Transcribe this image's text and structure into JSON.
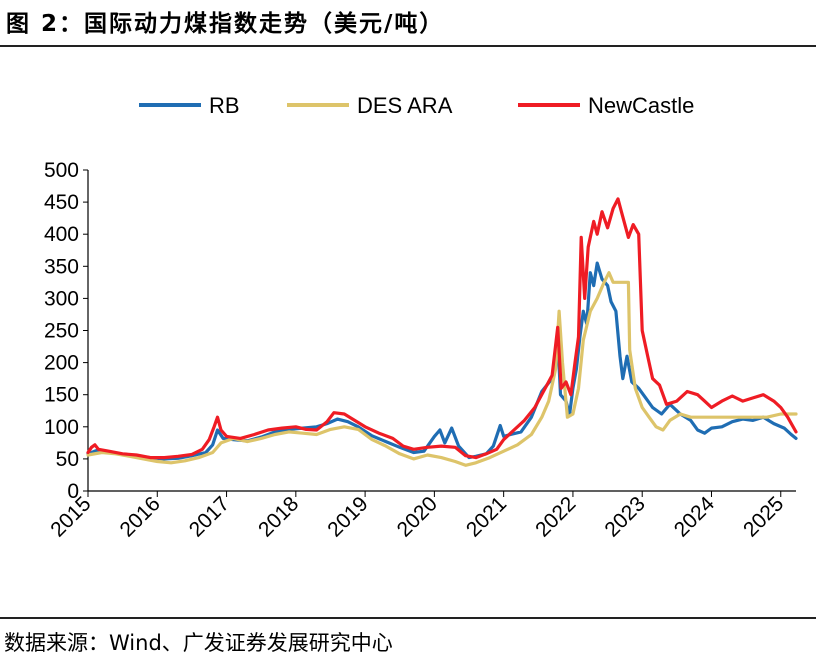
{
  "figure": {
    "title": "图  2：国际动力煤指数走势（美元/吨）",
    "source": "数据来源：Wind、广发证券发展研究中心"
  },
  "chart_data": {
    "type": "line",
    "title": "国际动力煤指数走势（美元/吨）",
    "xlabel": "",
    "ylabel": "",
    "ylim": [
      0,
      500
    ],
    "yticks": [
      0,
      50,
      100,
      150,
      200,
      250,
      300,
      350,
      400,
      450,
      500
    ],
    "xlim": [
      2015.0,
      2025.22
    ],
    "xticks": [
      "2015",
      "2016",
      "2017",
      "2018",
      "2019",
      "2020",
      "2021",
      "2022",
      "2023",
      "2024",
      "2025"
    ],
    "legend_position": "top",
    "series": [
      {
        "name": "RB",
        "color": "#1f6db3",
        "points": [
          [
            2015.0,
            58
          ],
          [
            2015.15,
            64
          ],
          [
            2015.3,
            60
          ],
          [
            2015.5,
            57
          ],
          [
            2015.7,
            54
          ],
          [
            2015.9,
            52
          ],
          [
            2016.1,
            50
          ],
          [
            2016.3,
            51
          ],
          [
            2016.5,
            55
          ],
          [
            2016.7,
            60
          ],
          [
            2016.8,
            72
          ],
          [
            2016.87,
            95
          ],
          [
            2016.95,
            82
          ],
          [
            2017.1,
            80
          ],
          [
            2017.3,
            78
          ],
          [
            2017.5,
            84
          ],
          [
            2017.7,
            92
          ],
          [
            2017.9,
            96
          ],
          [
            2018.1,
            98
          ],
          [
            2018.3,
            100
          ],
          [
            2018.45,
            105
          ],
          [
            2018.6,
            112
          ],
          [
            2018.75,
            108
          ],
          [
            2018.9,
            100
          ],
          [
            2019.1,
            86
          ],
          [
            2019.3,
            77
          ],
          [
            2019.5,
            68
          ],
          [
            2019.7,
            60
          ],
          [
            2019.85,
            62
          ],
          [
            2020.0,
            85
          ],
          [
            2020.08,
            95
          ],
          [
            2020.15,
            75
          ],
          [
            2020.25,
            98
          ],
          [
            2020.35,
            70
          ],
          [
            2020.5,
            52
          ],
          [
            2020.6,
            54
          ],
          [
            2020.75,
            58
          ],
          [
            2020.85,
            70
          ],
          [
            2020.95,
            102
          ],
          [
            2021.0,
            85
          ],
          [
            2021.1,
            88
          ],
          [
            2021.25,
            92
          ],
          [
            2021.4,
            115
          ],
          [
            2021.55,
            155
          ],
          [
            2021.7,
            175
          ],
          [
            2021.78,
            240
          ],
          [
            2021.82,
            150
          ],
          [
            2021.9,
            140
          ],
          [
            2021.95,
            118
          ],
          [
            2022.0,
            160
          ],
          [
            2022.05,
            190
          ],
          [
            2022.1,
            240
          ],
          [
            2022.15,
            280
          ],
          [
            2022.2,
            260
          ],
          [
            2022.25,
            340
          ],
          [
            2022.3,
            320
          ],
          [
            2022.35,
            355
          ],
          [
            2022.42,
            330
          ],
          [
            2022.5,
            320
          ],
          [
            2022.55,
            295
          ],
          [
            2022.62,
            280
          ],
          [
            2022.68,
            210
          ],
          [
            2022.72,
            175
          ],
          [
            2022.78,
            210
          ],
          [
            2022.85,
            170
          ],
          [
            2022.95,
            160
          ],
          [
            2023.05,
            145
          ],
          [
            2023.15,
            130
          ],
          [
            2023.28,
            120
          ],
          [
            2023.4,
            135
          ],
          [
            2023.55,
            120
          ],
          [
            2023.7,
            110
          ],
          [
            2023.8,
            95
          ],
          [
            2023.9,
            90
          ],
          [
            2024.0,
            98
          ],
          [
            2024.15,
            100
          ],
          [
            2024.3,
            108
          ],
          [
            2024.45,
            112
          ],
          [
            2024.6,
            110
          ],
          [
            2024.75,
            115
          ],
          [
            2024.9,
            105
          ],
          [
            2025.05,
            98
          ],
          [
            2025.15,
            88
          ],
          [
            2025.22,
            82
          ]
        ]
      },
      {
        "name": "DES ARA",
        "color": "#ddc46a",
        "points": [
          [
            2015.0,
            56
          ],
          [
            2015.2,
            60
          ],
          [
            2015.4,
            58
          ],
          [
            2015.6,
            54
          ],
          [
            2015.8,
            50
          ],
          [
            2016.0,
            46
          ],
          [
            2016.2,
            44
          ],
          [
            2016.4,
            47
          ],
          [
            2016.6,
            52
          ],
          [
            2016.8,
            60
          ],
          [
            2016.92,
            75
          ],
          [
            2017.1,
            82
          ],
          [
            2017.3,
            77
          ],
          [
            2017.5,
            82
          ],
          [
            2017.7,
            88
          ],
          [
            2017.9,
            92
          ],
          [
            2018.1,
            90
          ],
          [
            2018.3,
            88
          ],
          [
            2018.5,
            96
          ],
          [
            2018.7,
            100
          ],
          [
            2018.9,
            96
          ],
          [
            2019.1,
            80
          ],
          [
            2019.3,
            70
          ],
          [
            2019.5,
            58
          ],
          [
            2019.7,
            50
          ],
          [
            2019.9,
            56
          ],
          [
            2020.1,
            52
          ],
          [
            2020.3,
            46
          ],
          [
            2020.45,
            40
          ],
          [
            2020.6,
            44
          ],
          [
            2020.8,
            52
          ],
          [
            2021.0,
            62
          ],
          [
            2021.2,
            72
          ],
          [
            2021.4,
            88
          ],
          [
            2021.55,
            115
          ],
          [
            2021.65,
            140
          ],
          [
            2021.75,
            190
          ],
          [
            2021.8,
            280
          ],
          [
            2021.85,
            200
          ],
          [
            2021.92,
            115
          ],
          [
            2022.0,
            120
          ],
          [
            2022.08,
            160
          ],
          [
            2022.15,
            235
          ],
          [
            2022.25,
            280
          ],
          [
            2022.35,
            300
          ],
          [
            2022.45,
            325
          ],
          [
            2022.52,
            340
          ],
          [
            2022.58,
            325
          ],
          [
            2022.8,
            325
          ],
          [
            2022.82,
            220
          ],
          [
            2022.9,
            160
          ],
          [
            2023.0,
            130
          ],
          [
            2023.1,
            115
          ],
          [
            2023.2,
            100
          ],
          [
            2023.3,
            95
          ],
          [
            2023.4,
            110
          ],
          [
            2023.55,
            120
          ],
          [
            2023.7,
            115
          ],
          [
            2024.0,
            115
          ],
          [
            2024.5,
            115
          ],
          [
            2024.6,
            115
          ],
          [
            2024.8,
            115
          ],
          [
            2025.0,
            120
          ],
          [
            2025.22,
            120
          ]
        ]
      },
      {
        "name": "NewCastle",
        "color": "#ef1c24",
        "points": [
          [
            2015.0,
            60
          ],
          [
            2015.05,
            68
          ],
          [
            2015.1,
            72
          ],
          [
            2015.15,
            65
          ],
          [
            2015.3,
            62
          ],
          [
            2015.5,
            58
          ],
          [
            2015.7,
            56
          ],
          [
            2015.9,
            52
          ],
          [
            2016.1,
            52
          ],
          [
            2016.3,
            54
          ],
          [
            2016.5,
            57
          ],
          [
            2016.65,
            65
          ],
          [
            2016.75,
            80
          ],
          [
            2016.82,
            100
          ],
          [
            2016.87,
            115
          ],
          [
            2016.92,
            95
          ],
          [
            2017.0,
            85
          ],
          [
            2017.2,
            82
          ],
          [
            2017.4,
            88
          ],
          [
            2017.6,
            95
          ],
          [
            2017.8,
            98
          ],
          [
            2018.0,
            100
          ],
          [
            2018.15,
            96
          ],
          [
            2018.3,
            95
          ],
          [
            2018.45,
            108
          ],
          [
            2018.55,
            122
          ],
          [
            2018.7,
            120
          ],
          [
            2018.85,
            110
          ],
          [
            2019.0,
            100
          ],
          [
            2019.2,
            90
          ],
          [
            2019.4,
            82
          ],
          [
            2019.55,
            70
          ],
          [
            2019.7,
            65
          ],
          [
            2019.9,
            68
          ],
          [
            2020.1,
            70
          ],
          [
            2020.3,
            68
          ],
          [
            2020.45,
            55
          ],
          [
            2020.6,
            52
          ],
          [
            2020.75,
            58
          ],
          [
            2020.9,
            65
          ],
          [
            2021.0,
            80
          ],
          [
            2021.15,
            95
          ],
          [
            2021.3,
            110
          ],
          [
            2021.45,
            130
          ],
          [
            2021.6,
            160
          ],
          [
            2021.7,
            180
          ],
          [
            2021.78,
            255
          ],
          [
            2021.83,
            160
          ],
          [
            2021.9,
            170
          ],
          [
            2021.97,
            150
          ],
          [
            2022.03,
            200
          ],
          [
            2022.08,
            240
          ],
          [
            2022.12,
            395
          ],
          [
            2022.17,
            300
          ],
          [
            2022.22,
            380
          ],
          [
            2022.3,
            420
          ],
          [
            2022.35,
            400
          ],
          [
            2022.42,
            435
          ],
          [
            2022.5,
            410
          ],
          [
            2022.58,
            440
          ],
          [
            2022.65,
            455
          ],
          [
            2022.7,
            435
          ],
          [
            2022.8,
            395
          ],
          [
            2022.87,
            415
          ],
          [
            2022.95,
            400
          ],
          [
            2023.0,
            250
          ],
          [
            2023.08,
            210
          ],
          [
            2023.15,
            175
          ],
          [
            2023.25,
            165
          ],
          [
            2023.35,
            135
          ],
          [
            2023.5,
            140
          ],
          [
            2023.65,
            155
          ],
          [
            2023.8,
            150
          ],
          [
            2023.9,
            140
          ],
          [
            2024.0,
            130
          ],
          [
            2024.15,
            140
          ],
          [
            2024.3,
            148
          ],
          [
            2024.45,
            140
          ],
          [
            2024.6,
            145
          ],
          [
            2024.75,
            150
          ],
          [
            2024.9,
            140
          ],
          [
            2025.0,
            130
          ],
          [
            2025.1,
            115
          ],
          [
            2025.22,
            92
          ]
        ]
      }
    ]
  }
}
